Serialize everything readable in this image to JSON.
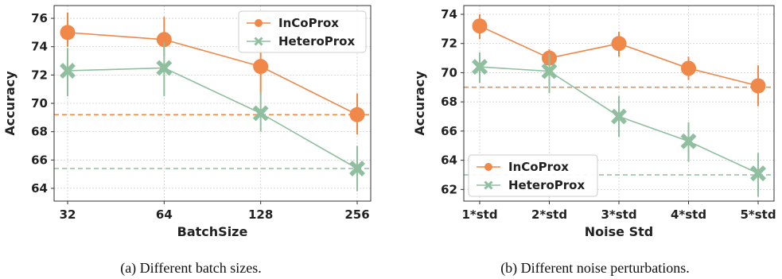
{
  "chart_data": [
    {
      "type": "line",
      "caption": "(a) Different batch sizes.",
      "xlabel": "BatchSize",
      "ylabel": "Accuracy",
      "categories": [
        "32",
        "64",
        "128",
        "256"
      ],
      "ylim": [
        63.1,
        76.9
      ],
      "yticks": [
        64,
        66,
        68,
        70,
        72,
        74,
        76
      ],
      "grid": true,
      "legend_position": "top-right",
      "series": [
        {
          "name": "InCoProx",
          "color": "#f0884a",
          "marker": "circle",
          "values": [
            75.0,
            74.5,
            72.6,
            69.2
          ],
          "err_low": [
            74.0,
            73.3,
            70.6,
            67.8
          ],
          "err_high": [
            76.4,
            76.1,
            74.2,
            70.7
          ],
          "baseline": 69.2
        },
        {
          "name": "HeteroProx",
          "color": "#8fbf9f",
          "marker": "x",
          "values": [
            72.3,
            72.5,
            69.3,
            65.4
          ],
          "err_low": [
            70.5,
            70.5,
            68.0,
            63.8
          ],
          "err_high": [
            73.9,
            74.3,
            70.8,
            67.0
          ],
          "baseline": 65.4
        }
      ]
    },
    {
      "type": "line",
      "caption": "(b) Different noise perturbations.",
      "xlabel": "Noise Std",
      "ylabel": "Accuracy",
      "categories": [
        "1*std",
        "2*std",
        "3*std",
        "4*std",
        "5*std"
      ],
      "ylim": [
        61.2,
        74.6
      ],
      "yticks": [
        62,
        64,
        66,
        68,
        70,
        72,
        74
      ],
      "grid": true,
      "legend_position": "bottom-left",
      "series": [
        {
          "name": "InCoProx",
          "color": "#f0884a",
          "marker": "circle",
          "values": [
            73.2,
            71.0,
            72.0,
            70.3,
            69.1
          ],
          "err_low": [
            72.3,
            70.3,
            71.1,
            69.5,
            67.7
          ],
          "err_high": [
            74.0,
            71.6,
            72.8,
            71.1,
            70.5
          ],
          "baseline": 69.0
        },
        {
          "name": "HeteroProx",
          "color": "#8fbf9f",
          "marker": "x",
          "values": [
            70.4,
            70.1,
            67.0,
            65.3,
            63.1
          ],
          "err_low": [
            69.3,
            68.6,
            65.6,
            63.9,
            61.5
          ],
          "err_high": [
            71.4,
            71.3,
            68.4,
            66.6,
            64.5
          ],
          "baseline": 63.0
        }
      ]
    }
  ]
}
